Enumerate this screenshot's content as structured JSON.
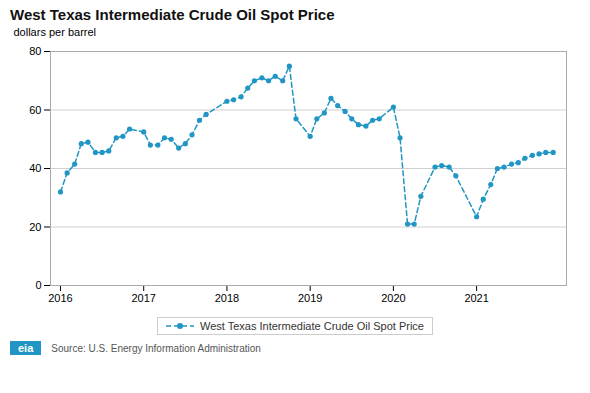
{
  "chart_data": {
    "type": "line",
    "title": "West Texas Intermediate Crude Oil Spot Price",
    "ylabel": "dollars per barrel",
    "annotations": [
      "Source: U.S. Energy Information Administration",
      "eia"
    ],
    "x": [
      2016.0,
      2016.08,
      2016.17,
      2016.25,
      2016.33,
      2016.42,
      2016.5,
      2016.58,
      2016.67,
      2016.75,
      2016.83,
      2017.0,
      2017.08,
      2017.17,
      2017.25,
      2017.33,
      2017.42,
      2017.5,
      2017.58,
      2017.67,
      2017.75,
      2018.0,
      2018.08,
      2018.17,
      2018.25,
      2018.33,
      2018.42,
      2018.5,
      2018.58,
      2018.67,
      2018.75,
      2018.83,
      2019.0,
      2019.08,
      2019.17,
      2019.25,
      2019.33,
      2019.42,
      2019.5,
      2019.58,
      2019.67,
      2019.75,
      2019.83,
      2020.0,
      2020.08,
      2020.17,
      2020.25,
      2020.33,
      2020.5,
      2020.58,
      2020.67,
      2020.75,
      2021.0,
      2021.08,
      2021.17,
      2021.25,
      2021.33,
      2021.42,
      2021.5,
      2021.58,
      2021.67,
      2021.75,
      2021.83,
      2021.92
    ],
    "series": [
      {
        "name": "West Texas Intermediate Crude Oil Spot Price",
        "color": "#2196c4",
        "line_style": "dashed",
        "marker": "o",
        "values": [
          32.0,
          38.5,
          41.5,
          48.5,
          49.0,
          45.5,
          45.5,
          46.0,
          50.5,
          51.0,
          53.5,
          52.5,
          48.0,
          48.0,
          50.5,
          50.0,
          47.0,
          48.5,
          51.5,
          56.5,
          58.5,
          63.0,
          63.5,
          64.5,
          67.5,
          70.0,
          71.0,
          70.0,
          71.5,
          70.0,
          75.0,
          57.0,
          51.0,
          57.0,
          59.0,
          64.0,
          61.5,
          59.5,
          57.0,
          55.0,
          54.5,
          56.5,
          57.0,
          61.0,
          50.5,
          21.0,
          21.0,
          30.5,
          40.5,
          41.0,
          40.5,
          37.5,
          23.5,
          29.5,
          34.5,
          40.0,
          40.5,
          41.5,
          42.0,
          43.5,
          44.5,
          45.0,
          45.5,
          45.5
        ]
      }
    ],
    "xlim": [
      2015.88,
      2022.08
    ],
    "xticks": [
      2016,
      2017,
      2018,
      2019,
      2020,
      2021
    ],
    "ylim": [
      0,
      80
    ],
    "yticks": [
      0,
      20,
      40,
      60,
      80
    ],
    "grid": true,
    "legend": "bottom"
  }
}
